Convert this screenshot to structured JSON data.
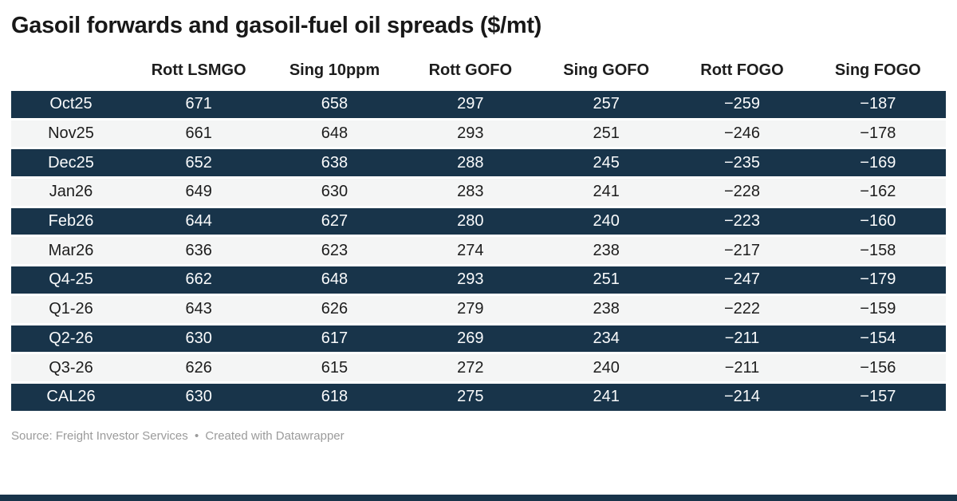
{
  "header": {
    "title": "Gasoil forwards and gasoil-fuel oil spreads ($/mt)"
  },
  "chart_data": {
    "type": "table",
    "title": "Gasoil forwards and gasoil-fuel oil spreads ($/mt)",
    "columns": [
      "",
      "Rott LSMGO",
      "Sing 10ppm",
      "Rott GOFO",
      "Sing GOFO",
      "Rott FOGO",
      "Sing FOGO"
    ],
    "rows": [
      {
        "label": "Oct25",
        "values": [
          "671",
          "658",
          "297",
          "257",
          "−259",
          "−187"
        ]
      },
      {
        "label": "Nov25",
        "values": [
          "661",
          "648",
          "293",
          "251",
          "−246",
          "−178"
        ]
      },
      {
        "label": "Dec25",
        "values": [
          "652",
          "638",
          "288",
          "245",
          "−235",
          "−169"
        ]
      },
      {
        "label": "Jan26",
        "values": [
          "649",
          "630",
          "283",
          "241",
          "−228",
          "−162"
        ]
      },
      {
        "label": "Feb26",
        "values": [
          "644",
          "627",
          "280",
          "240",
          "−223",
          "−160"
        ]
      },
      {
        "label": "Mar26",
        "values": [
          "636",
          "623",
          "274",
          "238",
          "−217",
          "−158"
        ]
      },
      {
        "label": "Q4-25",
        "values": [
          "662",
          "648",
          "293",
          "251",
          "−247",
          "−179"
        ]
      },
      {
        "label": "Q1-26",
        "values": [
          "643",
          "626",
          "279",
          "238",
          "−222",
          "−159"
        ]
      },
      {
        "label": "Q2-26",
        "values": [
          "630",
          "617",
          "269",
          "234",
          "−211",
          "−154"
        ]
      },
      {
        "label": "Q3-26",
        "values": [
          "626",
          "615",
          "272",
          "240",
          "−211",
          "−156"
        ]
      },
      {
        "label": "CAL26",
        "values": [
          "630",
          "618",
          "275",
          "241",
          "−214",
          "−157"
        ]
      }
    ],
    "layout": {
      "striping": "rows alternate dark navy and light gray, starting dark",
      "alignment": "all headers and values center-aligned",
      "grid": "3px white separators between rows"
    }
  },
  "footer": {
    "source": "Source: Freight Investor Services",
    "separator": "•",
    "credit": "Created with Datawrapper"
  },
  "colors": {
    "dark_row": "#18344a",
    "light_row": "#f4f5f5",
    "dark_row_text": "#fafbfc",
    "light_row_text": "#1d1d1d",
    "header_text": "#1d1d1d",
    "title_text": "#181818",
    "footer_text": "#9b9b9b",
    "accent_bar": "#18344a",
    "background": "#ffffff"
  }
}
